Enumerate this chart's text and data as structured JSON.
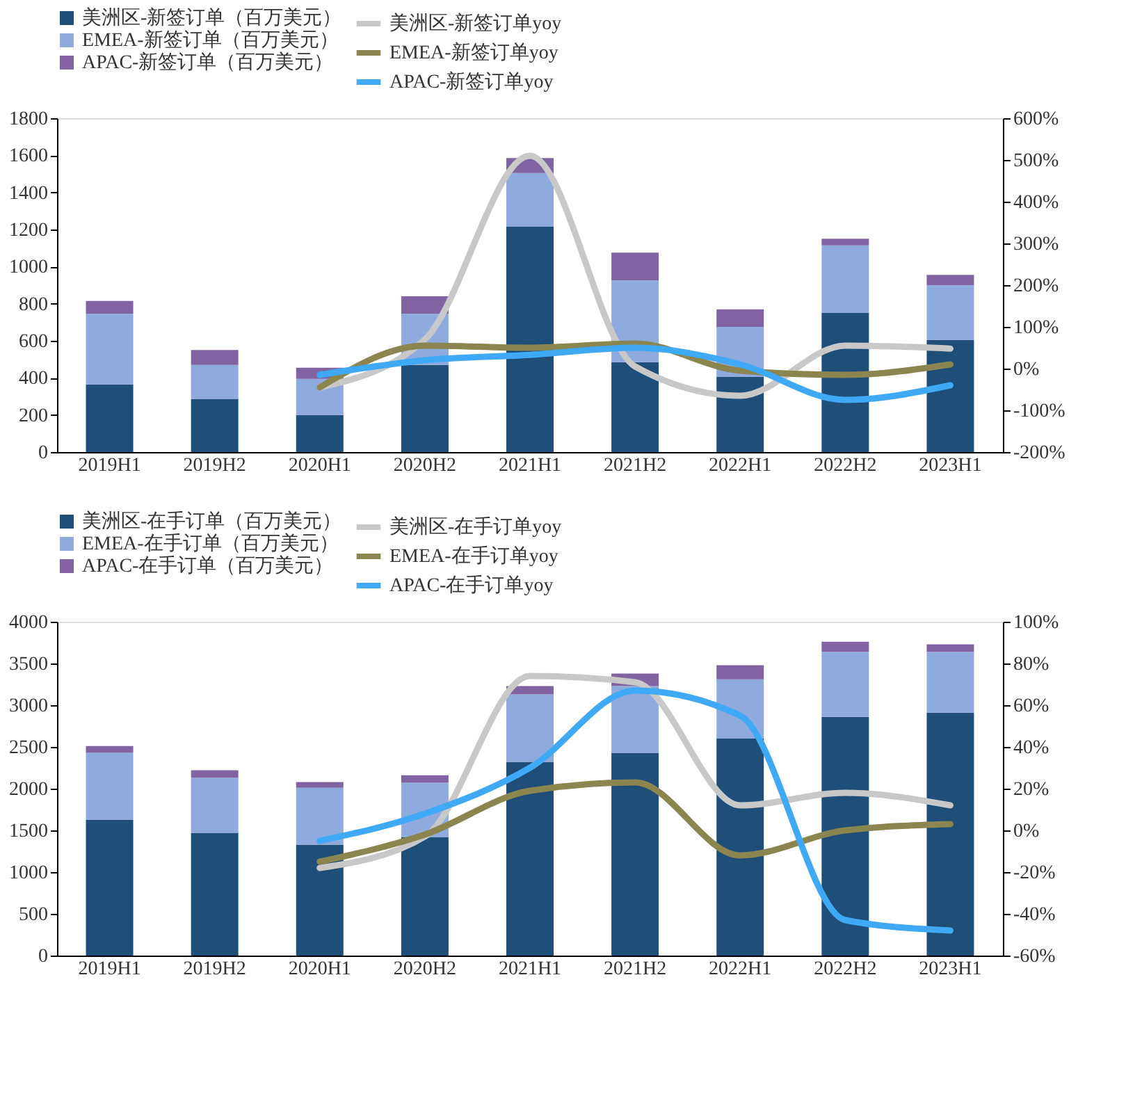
{
  "chart_data": [
    {
      "type": "bar",
      "stacked": true,
      "grid": false,
      "legend": "top",
      "marker": "none",
      "line_style": "solid",
      "categories": [
        "2019H1",
        "2019H2",
        "2020H1",
        "2020H2",
        "2021H1",
        "2021H2",
        "2022H1",
        "2022H2",
        "2023H1"
      ],
      "ylim": [
        0,
        1800
      ],
      "yticks": [
        0,
        200,
        400,
        600,
        800,
        1000,
        1200,
        1400,
        1600,
        1800
      ],
      "y2lim": [
        -200,
        600
      ],
      "y2ticks": [
        {
          "value": -200,
          "label": "-200%"
        },
        {
          "value": -100,
          "label": "-100%"
        },
        {
          "value": 0,
          "label": "0%"
        },
        {
          "value": 100,
          "label": "100%"
        },
        {
          "value": 200,
          "label": "200%"
        },
        {
          "value": 300,
          "label": "300%"
        },
        {
          "value": 400,
          "label": "400%"
        },
        {
          "value": 500,
          "label": "500%"
        },
        {
          "value": 600,
          "label": "600%"
        }
      ],
      "series": [
        {
          "name": "美洲区-新签订单（百万美元）",
          "color": "#1f4e79",
          "values": [
            365,
            285,
            200,
            470,
            1215,
            485,
            405,
            750,
            605
          ]
        },
        {
          "name": "EMEA-新签订单（百万美元）",
          "color": "#8faadc",
          "values": [
            380,
            185,
            195,
            275,
            290,
            440,
            270,
            365,
            295
          ]
        },
        {
          "name": "APAC-新签订单（百万美元）",
          "color": "#8064a2",
          "values": [
            70,
            80,
            60,
            95,
            80,
            150,
            95,
            35,
            55
          ]
        },
        {
          "name": "美洲区-新签订单yoy",
          "type": "line",
          "axis": "y2",
          "color": "#c8c8c8",
          "values": [
            null,
            null,
            -45,
            70,
            510,
            5,
            -65,
            55,
            48
          ]
        },
        {
          "name": "EMEA-新签订单yoy",
          "type": "line",
          "axis": "y2",
          "color": "#8b8650",
          "values": [
            null,
            null,
            -45,
            55,
            50,
            60,
            -5,
            -15,
            10
          ]
        },
        {
          "name": "APAC-新签订单yoy",
          "type": "line",
          "axis": "y2",
          "color": "#3fa9f5",
          "values": [
            null,
            null,
            -15,
            20,
            33,
            50,
            10,
            -75,
            -40
          ]
        }
      ]
    },
    {
      "type": "bar",
      "stacked": true,
      "grid": false,
      "legend": "top",
      "marker": "none",
      "line_style": "solid",
      "categories": [
        "2019H1",
        "2019H2",
        "2020H1",
        "2020H2",
        "2021H1",
        "2021H2",
        "2022H1",
        "2022H2",
        "2023H1"
      ],
      "ylim": [
        0,
        4000
      ],
      "yticks": [
        0,
        500,
        1000,
        1500,
        2000,
        2500,
        3000,
        3500,
        4000
      ],
      "y2lim": [
        -60,
        100
      ],
      "y2ticks": [
        {
          "value": -60,
          "label": "-60%"
        },
        {
          "value": -40,
          "label": "-40%"
        },
        {
          "value": -20,
          "label": "-20%"
        },
        {
          "value": 0,
          "label": "0%"
        },
        {
          "value": 20,
          "label": "20%"
        },
        {
          "value": 40,
          "label": "40%"
        },
        {
          "value": 60,
          "label": "60%"
        },
        {
          "value": 80,
          "label": "80%"
        },
        {
          "value": 100,
          "label": "100%"
        }
      ],
      "series": [
        {
          "name": "美洲区-在手订单（百万美元）",
          "color": "#1f4e79",
          "values": [
            1630,
            1470,
            1330,
            1420,
            2320,
            2430,
            2600,
            2860,
            2910
          ]
        },
        {
          "name": "EMEA-在手订单（百万美元）",
          "color": "#8faadc",
          "values": [
            800,
            660,
            680,
            650,
            810,
            800,
            710,
            780,
            730
          ]
        },
        {
          "name": "APAC-在手订单（百万美元）",
          "color": "#8064a2",
          "values": [
            80,
            90,
            70,
            90,
            100,
            150,
            170,
            120,
            90
          ]
        },
        {
          "name": "美洲区-在手订单yoy",
          "type": "line",
          "axis": "y2",
          "color": "#c8c8c8",
          "values": [
            null,
            null,
            -18,
            -3,
            74,
            71,
            12,
            18,
            12
          ]
        },
        {
          "name": "EMEA-在手订单yoy",
          "type": "line",
          "axis": "y2",
          "color": "#8b8650",
          "values": [
            null,
            null,
            -15,
            -2,
            19,
            23,
            -12,
            0,
            3
          ]
        },
        {
          "name": "APAC-在手订单yoy",
          "type": "line",
          "axis": "y2",
          "color": "#3fa9f5",
          "values": [
            null,
            null,
            -5,
            8,
            30,
            67,
            55,
            -43,
            -48
          ]
        }
      ]
    }
  ]
}
